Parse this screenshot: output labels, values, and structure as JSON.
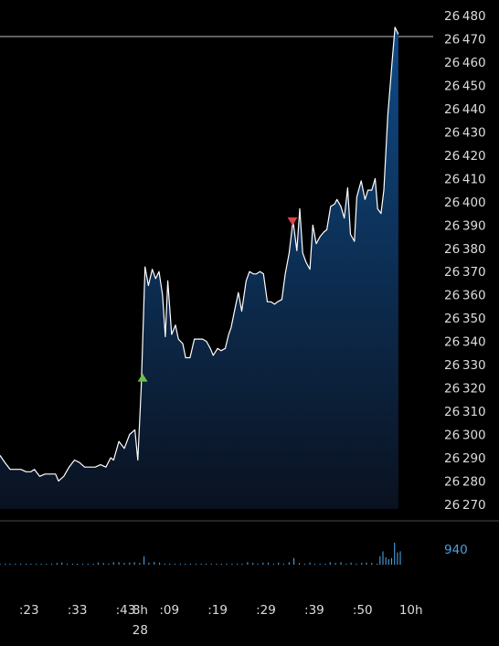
{
  "chart_data": {
    "type": "area",
    "title": "",
    "xlabel": "",
    "ylabel": "",
    "ylim": [
      26268,
      26482
    ],
    "y_ticks": [
      26480,
      26470,
      26460,
      26450,
      26440,
      26430,
      26420,
      26410,
      26400,
      26390,
      26380,
      26370,
      26360,
      26350,
      26340,
      26330,
      26320,
      26310,
      26300,
      26290,
      26280,
      26270
    ],
    "x_ticks": [
      {
        "label": ":23",
        "t": 0.0
      },
      {
        "label": ":33",
        "t": 10.0
      },
      {
        "label": ":43",
        "t": 20.0
      },
      {
        "label": "8h",
        "sublabel": "28",
        "t": 23.0
      },
      {
        "label": ":09",
        "t": 29.0
      },
      {
        "label": ":19",
        "t": 39.0
      },
      {
        "label": ":29",
        "t": 49.0
      },
      {
        "label": ":39",
        "t": 59.0
      },
      {
        "label": ":50",
        "t": 69.0
      },
      {
        "label": "10h",
        "t": 79.0
      }
    ],
    "xlim": [
      -6.0,
      83.6
    ],
    "series": [
      {
        "values": [
          [
            -6.0,
            26291
          ],
          [
            -5.0,
            26288
          ],
          [
            -3.9,
            26285
          ],
          [
            -2.8,
            26285
          ],
          [
            -1.7,
            26285
          ],
          [
            -0.6,
            26284
          ],
          [
            0.4,
            26284
          ],
          [
            1.1,
            26285
          ],
          [
            2.2,
            26282
          ],
          [
            3.3,
            26283
          ],
          [
            4.4,
            26283
          ],
          [
            5.5,
            26283
          ],
          [
            6.1,
            26280
          ],
          [
            7.2,
            26282
          ],
          [
            8.3,
            26286
          ],
          [
            9.4,
            26289
          ],
          [
            10.4,
            26288
          ],
          [
            11.5,
            26286
          ],
          [
            12.6,
            26286
          ],
          [
            13.7,
            26286
          ],
          [
            14.8,
            26287
          ],
          [
            15.9,
            26286
          ],
          [
            16.9,
            26290
          ],
          [
            17.5,
            26289
          ],
          [
            18.6,
            26297
          ],
          [
            19.7,
            26294
          ],
          [
            20.8,
            26300
          ],
          [
            21.9,
            26302
          ],
          [
            22.5,
            26289
          ],
          [
            23.2,
            26320
          ],
          [
            24.0,
            26372
          ],
          [
            24.7,
            26364
          ],
          [
            25.5,
            26371
          ],
          [
            26.2,
            26367
          ],
          [
            26.9,
            26370
          ],
          [
            27.6,
            26360
          ],
          [
            28.2,
            26342
          ],
          [
            28.7,
            26366
          ],
          [
            29.5,
            26343
          ],
          [
            30.3,
            26347
          ],
          [
            30.9,
            26341
          ],
          [
            31.8,
            26339
          ],
          [
            32.4,
            26333
          ],
          [
            33.3,
            26333
          ],
          [
            34.2,
            26341
          ],
          [
            35.2,
            26341
          ],
          [
            35.9,
            26341
          ],
          [
            36.7,
            26340
          ],
          [
            37.5,
            26337
          ],
          [
            38.1,
            26334
          ],
          [
            39.0,
            26337
          ],
          [
            39.7,
            26336
          ],
          [
            40.6,
            26337
          ],
          [
            41.3,
            26343
          ],
          [
            41.8,
            26346
          ],
          [
            42.7,
            26355
          ],
          [
            43.3,
            26361
          ],
          [
            44.0,
            26353
          ],
          [
            44.9,
            26366
          ],
          [
            45.6,
            26370
          ],
          [
            46.4,
            26369
          ],
          [
            47.0,
            26369
          ],
          [
            47.8,
            26370
          ],
          [
            48.5,
            26369
          ],
          [
            49.3,
            26357
          ],
          [
            50.0,
            26357
          ],
          [
            50.8,
            26356
          ],
          [
            51.4,
            26357
          ],
          [
            52.3,
            26358
          ],
          [
            53.0,
            26369
          ],
          [
            53.8,
            26378
          ],
          [
            54.6,
            26392
          ],
          [
            55.4,
            26379
          ],
          [
            56.0,
            26397
          ],
          [
            56.6,
            26378
          ],
          [
            57.3,
            26374
          ],
          [
            58.1,
            26371
          ],
          [
            58.7,
            26390
          ],
          [
            59.4,
            26382
          ],
          [
            60.2,
            26385
          ],
          [
            61.0,
            26387
          ],
          [
            61.6,
            26388
          ],
          [
            62.4,
            26398
          ],
          [
            63.2,
            26399
          ],
          [
            63.7,
            26401
          ],
          [
            64.5,
            26398
          ],
          [
            65.2,
            26393
          ],
          [
            65.9,
            26406
          ],
          [
            66.5,
            26386
          ],
          [
            67.3,
            26383
          ],
          [
            67.8,
            26402
          ],
          [
            68.7,
            26409
          ],
          [
            69.5,
            26401
          ],
          [
            70.1,
            26405
          ],
          [
            70.9,
            26405
          ],
          [
            71.6,
            26410
          ],
          [
            72.1,
            26397
          ],
          [
            72.8,
            26395
          ],
          [
            73.4,
            26405
          ],
          [
            74.2,
            26437
          ],
          [
            75.1,
            26460
          ],
          [
            75.7,
            26475
          ],
          [
            76.4,
            26472
          ]
        ]
      }
    ],
    "markers": [
      {
        "type": "buy",
        "shape": "triangle-up",
        "t": 23.5,
        "y": 26324,
        "color": "#6dbf4b"
      },
      {
        "type": "sell",
        "shape": "triangle-down",
        "t": 54.5,
        "y": 26392,
        "color": "#e0424b"
      }
    ],
    "reference_line": {
      "y": 26471,
      "color": "#bfbfbf"
    },
    "volume": {
      "label": "940",
      "max": 940,
      "bars": [
        [
          -6.0,
          30
        ],
        [
          -4.9,
          30
        ],
        [
          -3.9,
          30
        ],
        [
          -2.8,
          30
        ],
        [
          -1.7,
          30
        ],
        [
          -0.6,
          30
        ],
        [
          0.4,
          30
        ],
        [
          1.5,
          30
        ],
        [
          2.5,
          30
        ],
        [
          3.6,
          30
        ],
        [
          4.7,
          30
        ],
        [
          5.8,
          50
        ],
        [
          6.8,
          60
        ],
        [
          7.9,
          30
        ],
        [
          9.0,
          30
        ],
        [
          10.0,
          30
        ],
        [
          11.1,
          30
        ],
        [
          12.2,
          30
        ],
        [
          13.3,
          30
        ],
        [
          14.3,
          60
        ],
        [
          15.4,
          50
        ],
        [
          16.5,
          30
        ],
        [
          17.5,
          70
        ],
        [
          18.6,
          70
        ],
        [
          19.7,
          50
        ],
        [
          20.8,
          60
        ],
        [
          21.8,
          70
        ],
        [
          22.9,
          50
        ],
        [
          23.8,
          240
        ],
        [
          24.8,
          60
        ],
        [
          25.9,
          80
        ],
        [
          27.0,
          60
        ],
        [
          28.1,
          30
        ],
        [
          29.1,
          30
        ],
        [
          30.2,
          30
        ],
        [
          31.3,
          30
        ],
        [
          32.3,
          30
        ],
        [
          33.4,
          30
        ],
        [
          34.5,
          30
        ],
        [
          35.6,
          30
        ],
        [
          36.6,
          30
        ],
        [
          37.7,
          30
        ],
        [
          38.8,
          30
        ],
        [
          39.8,
          30
        ],
        [
          40.9,
          30
        ],
        [
          42.0,
          30
        ],
        [
          43.1,
          30
        ],
        [
          44.1,
          30
        ],
        [
          45.2,
          70
        ],
        [
          46.3,
          50
        ],
        [
          47.3,
          30
        ],
        [
          48.4,
          60
        ],
        [
          49.5,
          60
        ],
        [
          50.6,
          30
        ],
        [
          51.6,
          60
        ],
        [
          52.7,
          30
        ],
        [
          53.8,
          70
        ],
        [
          54.8,
          190
        ],
        [
          55.9,
          50
        ],
        [
          57.0,
          30
        ],
        [
          58.1,
          60
        ],
        [
          59.1,
          30
        ],
        [
          60.2,
          30
        ],
        [
          61.3,
          30
        ],
        [
          62.3,
          70
        ],
        [
          63.4,
          50
        ],
        [
          64.5,
          70
        ],
        [
          65.6,
          30
        ],
        [
          66.6,
          60
        ],
        [
          67.7,
          30
        ],
        [
          68.8,
          50
        ],
        [
          69.8,
          60
        ],
        [
          70.9,
          50
        ],
        [
          72.0,
          30
        ],
        [
          72.6,
          240
        ],
        [
          73.2,
          380
        ],
        [
          73.8,
          210
        ],
        [
          74.4,
          160
        ],
        [
          75.0,
          190
        ],
        [
          75.6,
          630
        ],
        [
          76.2,
          350
        ],
        [
          76.8,
          380
        ]
      ]
    },
    "legend": "none",
    "grid": false
  }
}
